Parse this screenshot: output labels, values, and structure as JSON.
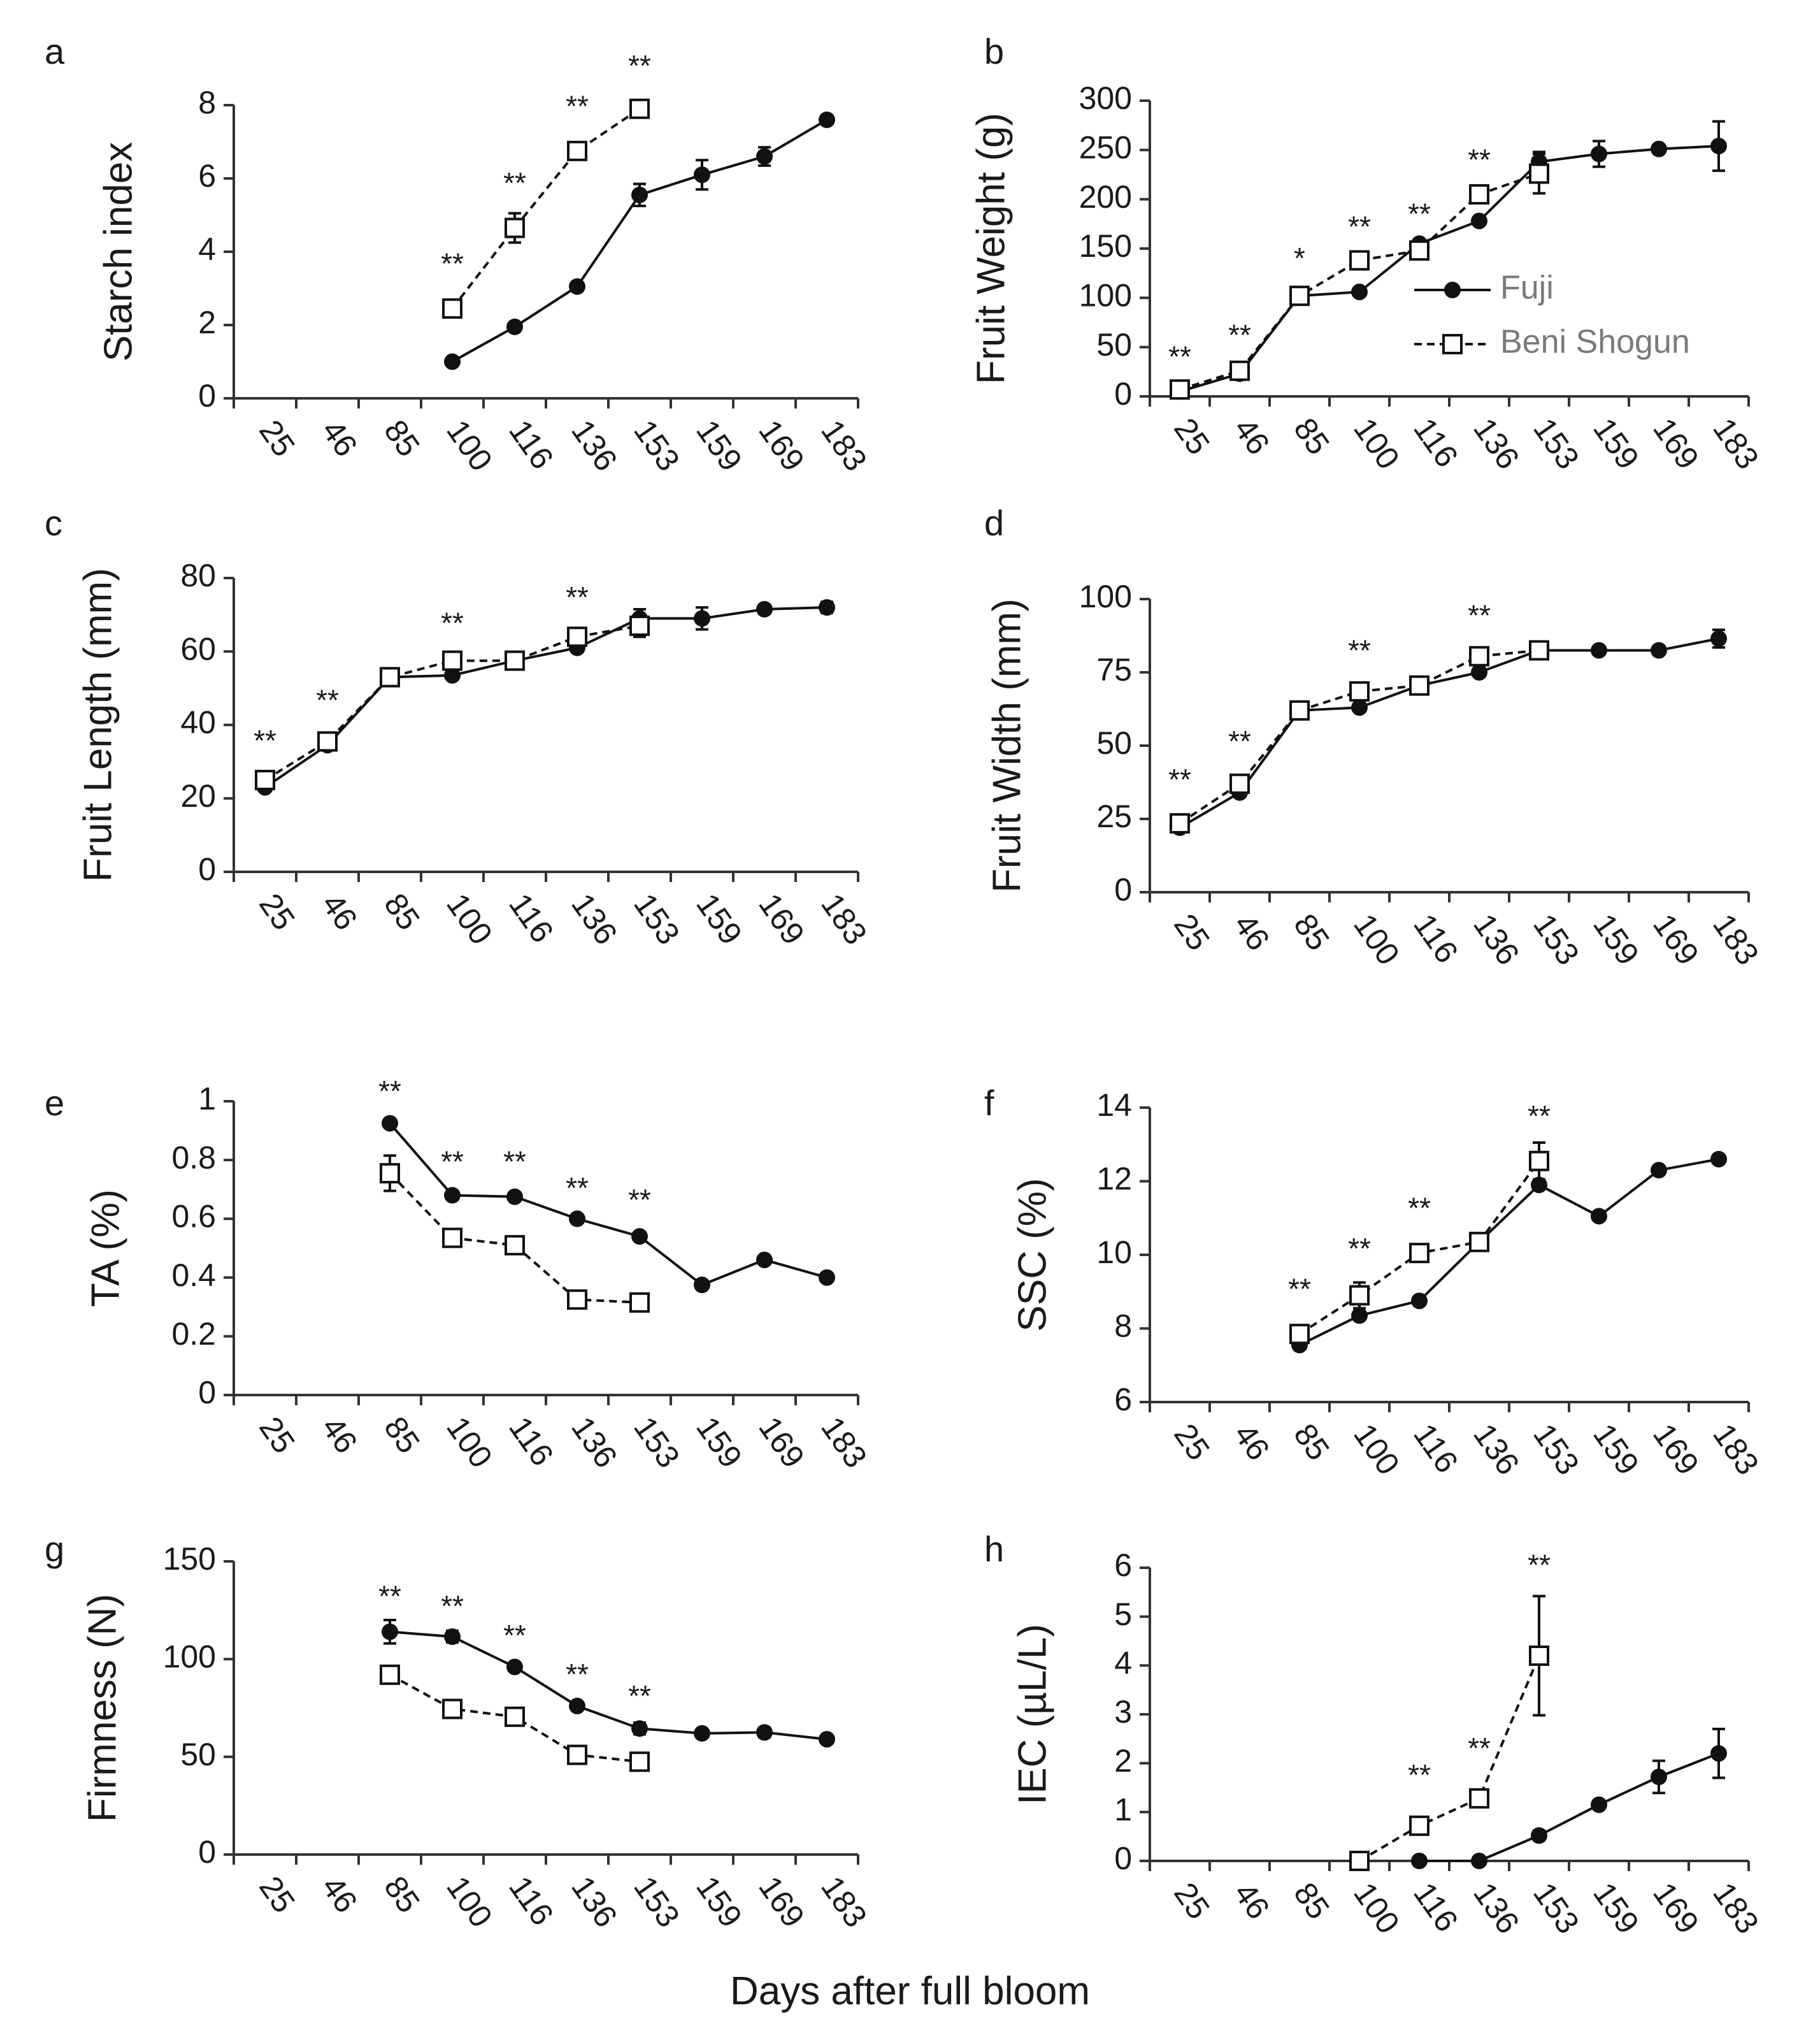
{
  "figure": {
    "x_axis_label": "Days after full bloom",
    "legend": {
      "series1": "Fuji",
      "series2": "Beni Shogun",
      "position": "center-right of panel b"
    }
  },
  "chart_data": [
    {
      "panel": "a",
      "type": "line",
      "ylabel": "Starch index",
      "ylim": [
        0,
        8
      ],
      "yticks": [
        "0",
        "2",
        "4",
        "6",
        "8"
      ],
      "categories": [
        "25",
        "46",
        "85",
        "100",
        "116",
        "136",
        "153",
        "159",
        "169",
        "183"
      ],
      "series": [
        {
          "name": "Fuji",
          "marker": "filled-circle",
          "line": "solid",
          "values": [
            null,
            null,
            null,
            1.0,
            1.95,
            3.05,
            5.55,
            6.1,
            6.6,
            7.6
          ],
          "errors": [
            0,
            0,
            0,
            0,
            0,
            0,
            0.3,
            0.4,
            0.25,
            0
          ]
        },
        {
          "name": "Beni Shogun",
          "marker": "open-square",
          "line": "dashed",
          "values": [
            null,
            null,
            null,
            2.45,
            4.65,
            6.75,
            7.9,
            null,
            null,
            null
          ],
          "errors": [
            0,
            0,
            0,
            0,
            0.4,
            0.2,
            0,
            0,
            0,
            0
          ]
        }
      ],
      "annotations": [
        {
          "category": "100",
          "text": "**",
          "value": 3.4
        },
        {
          "category": "116",
          "text": "**",
          "value": 5.6
        },
        {
          "category": "136",
          "text": "**",
          "value": 7.7
        },
        {
          "category": "153",
          "text": "**",
          "value": 8.8
        }
      ]
    },
    {
      "panel": "b",
      "type": "line",
      "ylabel": "Fruit Weight  (g)",
      "ylim": [
        0,
        300
      ],
      "yticks": [
        "0",
        "50",
        "100",
        "150",
        "200",
        "250",
        "300"
      ],
      "categories": [
        "25",
        "46",
        "85",
        "100",
        "116",
        "136",
        "153",
        "159",
        "169",
        "183"
      ],
      "series": [
        {
          "name": "Fuji",
          "marker": "filled-circle",
          "line": "solid",
          "values": [
            5,
            23,
            102,
            106,
            155,
            178,
            238,
            246,
            251,
            254
          ],
          "errors": [
            0,
            0,
            0,
            0,
            0,
            0,
            10,
            13,
            0,
            25
          ]
        },
        {
          "name": "Beni Shogun",
          "marker": "open-square",
          "line": "dashed",
          "values": [
            7,
            26,
            102,
            138,
            148,
            205,
            226,
            null,
            null,
            null
          ],
          "errors": [
            0,
            0,
            0,
            0,
            0,
            0,
            20,
            0,
            0,
            0
          ]
        }
      ],
      "annotations": [
        {
          "category": "25",
          "text": "**",
          "value": 30
        },
        {
          "category": "46",
          "text": "**",
          "value": 52
        },
        {
          "category": "85",
          "text": "*",
          "value": 130
        },
        {
          "category": "100",
          "text": "**",
          "value": 162
        },
        {
          "category": "116",
          "text": "**",
          "value": 175
        },
        {
          "category": "136",
          "text": "**",
          "value": 230
        }
      ]
    },
    {
      "panel": "c",
      "type": "line",
      "ylabel": "Fruit Length  (mm)",
      "ylim": [
        0,
        80
      ],
      "yticks": [
        "0",
        "20",
        "40",
        "60",
        "80"
      ],
      "categories": [
        "25",
        "46",
        "85",
        "100",
        "116",
        "136",
        "153",
        "159",
        "169",
        "183"
      ],
      "series": [
        {
          "name": "Fuji",
          "marker": "filled-circle",
          "line": "solid",
          "values": [
            23,
            34.5,
            53,
            53.5,
            57.5,
            61,
            69,
            69,
            71.5,
            72
          ],
          "errors": [
            0,
            0,
            0,
            0,
            0,
            0,
            2.5,
            3,
            1.2,
            1.5
          ]
        },
        {
          "name": "Beni Shogun",
          "marker": "open-square",
          "line": "dashed",
          "values": [
            25,
            35.5,
            53,
            57.5,
            57.5,
            64,
            67,
            null,
            null,
            null
          ],
          "errors": [
            0,
            0,
            0,
            0,
            0,
            0,
            3,
            0,
            0,
            0
          ]
        }
      ],
      "annotations": [
        {
          "category": "25",
          "text": "**",
          "value": 33
        },
        {
          "category": "46",
          "text": "**",
          "value": 44
        },
        {
          "category": "100",
          "text": "**",
          "value": 65
        },
        {
          "category": "136",
          "text": "**",
          "value": 72
        }
      ]
    },
    {
      "panel": "d",
      "type": "line",
      "ylabel": "Fruit Width  (mm)",
      "ylim": [
        0,
        100
      ],
      "yticks": [
        "0",
        "25",
        "50",
        "75",
        "100"
      ],
      "categories": [
        "25",
        "46",
        "85",
        "100",
        "116",
        "136",
        "153",
        "159",
        "169",
        "183"
      ],
      "series": [
        {
          "name": "Fuji",
          "marker": "filled-circle",
          "line": "solid",
          "values": [
            22,
            34,
            62,
            63,
            70.5,
            75,
            82.5,
            82.5,
            82.5,
            86.5
          ],
          "errors": [
            0,
            0,
            0,
            0,
            0,
            0,
            0,
            0,
            0,
            3
          ]
        },
        {
          "name": "Beni Shogun",
          "marker": "open-square",
          "line": "dashed",
          "values": [
            23.5,
            37,
            62,
            68.5,
            70.5,
            80.5,
            82.5,
            null,
            null,
            null
          ],
          "errors": [
            0,
            0,
            0,
            0,
            0,
            0,
            0,
            0,
            0,
            0
          ]
        }
      ],
      "annotations": [
        {
          "category": "25",
          "text": "**",
          "value": 35
        },
        {
          "category": "46",
          "text": "**",
          "value": 48
        },
        {
          "category": "100",
          "text": "**",
          "value": 79
        },
        {
          "category": "136",
          "text": "**",
          "value": 91
        }
      ]
    },
    {
      "panel": "e",
      "type": "line",
      "ylabel": "TA (%)",
      "ylim": [
        0,
        1
      ],
      "yticks": [
        "0",
        "0.2",
        "0.4",
        "0.6",
        "0.8",
        "1"
      ],
      "categories": [
        "25",
        "46",
        "85",
        "100",
        "116",
        "136",
        "153",
        "159",
        "169",
        "183"
      ],
      "series": [
        {
          "name": "Fuji",
          "marker": "filled-circle",
          "line": "solid",
          "values": [
            null,
            null,
            0.925,
            0.68,
            0.675,
            0.6,
            0.54,
            0.375,
            0.46,
            0.4
          ],
          "errors": [
            0,
            0,
            0,
            0,
            0,
            0,
            0,
            0,
            0,
            0
          ]
        },
        {
          "name": "Beni Shogun",
          "marker": "open-square",
          "line": "dashed",
          "values": [
            null,
            null,
            0.755,
            0.535,
            0.51,
            0.325,
            0.315,
            null,
            null,
            null
          ],
          "errors": [
            0,
            0,
            0.06,
            0,
            0,
            0,
            0,
            0,
            0,
            0
          ]
        }
      ],
      "annotations": [
        {
          "category": "85",
          "text": "**",
          "value": 1.0
        },
        {
          "category": "100",
          "text": "**",
          "value": 0.76
        },
        {
          "category": "116",
          "text": "**",
          "value": 0.76
        },
        {
          "category": "136",
          "text": "**",
          "value": 0.67
        },
        {
          "category": "153",
          "text": "**",
          "value": 0.63
        }
      ]
    },
    {
      "panel": "f",
      "type": "line",
      "ylabel": "SSC (%)",
      "ylim": [
        6,
        14
      ],
      "yticks": [
        "6",
        "8",
        "10",
        "12",
        "14"
      ],
      "categories": [
        "25",
        "46",
        "85",
        "100",
        "116",
        "136",
        "153",
        "159",
        "169",
        "183"
      ],
      "series": [
        {
          "name": "Fuji",
          "marker": "filled-circle",
          "line": "solid",
          "values": [
            null,
            null,
            7.55,
            8.35,
            8.75,
            10.35,
            11.9,
            11.05,
            12.3,
            12.6
          ],
          "errors": [
            0,
            0,
            0,
            0,
            0,
            0,
            0,
            0,
            0,
            0
          ]
        },
        {
          "name": "Beni Shogun",
          "marker": "open-square",
          "line": "dashed",
          "values": [
            null,
            null,
            7.85,
            8.9,
            10.05,
            10.35,
            12.55,
            null,
            null,
            null
          ],
          "errors": [
            0,
            0,
            0,
            0.35,
            0,
            0,
            0.5,
            0,
            0,
            0
          ]
        }
      ],
      "annotations": [
        {
          "category": "85",
          "text": "**",
          "value": 8.8
        },
        {
          "category": "100",
          "text": "**",
          "value": 9.9
        },
        {
          "category": "116",
          "text": "**",
          "value": 11.0
        },
        {
          "category": "153",
          "text": "**",
          "value": 13.5
        }
      ]
    },
    {
      "panel": "g",
      "type": "line",
      "ylabel": "Firmness  (N)",
      "ylim": [
        0,
        150
      ],
      "yticks": [
        "0",
        "50",
        "100",
        "150"
      ],
      "categories": [
        "25",
        "46",
        "85",
        "100",
        "116",
        "136",
        "153",
        "159",
        "169",
        "183"
      ],
      "series": [
        {
          "name": "Fuji",
          "marker": "filled-circle",
          "line": "solid",
          "values": [
            null,
            null,
            114,
            111.5,
            96,
            76,
            64.5,
            62,
            62.5,
            59
          ],
          "errors": [
            0,
            0,
            6,
            3,
            0,
            0,
            3,
            0,
            2.5,
            0
          ]
        },
        {
          "name": "Beni Shogun",
          "marker": "open-square",
          "line": "dashed",
          "values": [
            null,
            null,
            92,
            74.5,
            70.5,
            51,
            47.5,
            null,
            null,
            null
          ],
          "errors": [
            0,
            0,
            0,
            0,
            0,
            0,
            0,
            0,
            0,
            0
          ]
        }
      ],
      "annotations": [
        {
          "category": "85",
          "text": "**",
          "value": 127
        },
        {
          "category": "100",
          "text": "**",
          "value": 122
        },
        {
          "category": "116",
          "text": "**",
          "value": 107
        },
        {
          "category": "136",
          "text": "**",
          "value": 87
        },
        {
          "category": "153",
          "text": "**",
          "value": 76
        }
      ]
    },
    {
      "panel": "h",
      "type": "line",
      "ylabel": "IEC (µL/L)",
      "ylim": [
        0,
        6
      ],
      "yticks": [
        "0",
        "1",
        "2",
        "3",
        "4",
        "5",
        "6"
      ],
      "categories": [
        "25",
        "46",
        "85",
        "100",
        "116",
        "136",
        "153",
        "159",
        "169",
        "183"
      ],
      "series": [
        {
          "name": "Fuji",
          "marker": "filled-circle",
          "line": "solid",
          "values": [
            null,
            null,
            null,
            null,
            0.0,
            0.0,
            0.52,
            1.15,
            1.72,
            2.2
          ],
          "errors": [
            0,
            0,
            0,
            0,
            0,
            0,
            0.1,
            0.08,
            0.33,
            0.5
          ]
        },
        {
          "name": "Beni Shogun",
          "marker": "open-square",
          "line": "dashed",
          "values": [
            null,
            null,
            null,
            0.0,
            0.72,
            1.28,
            4.2,
            null,
            null,
            null
          ],
          "errors": [
            0,
            0,
            0,
            0,
            0,
            0,
            1.22,
            0,
            0,
            0
          ]
        }
      ],
      "annotations": [
        {
          "category": "116",
          "text": "**",
          "value": 1.55
        },
        {
          "category": "136",
          "text": "**",
          "value": 2.1
        },
        {
          "category": "153",
          "text": "**",
          "value": 5.85
        }
      ]
    }
  ]
}
